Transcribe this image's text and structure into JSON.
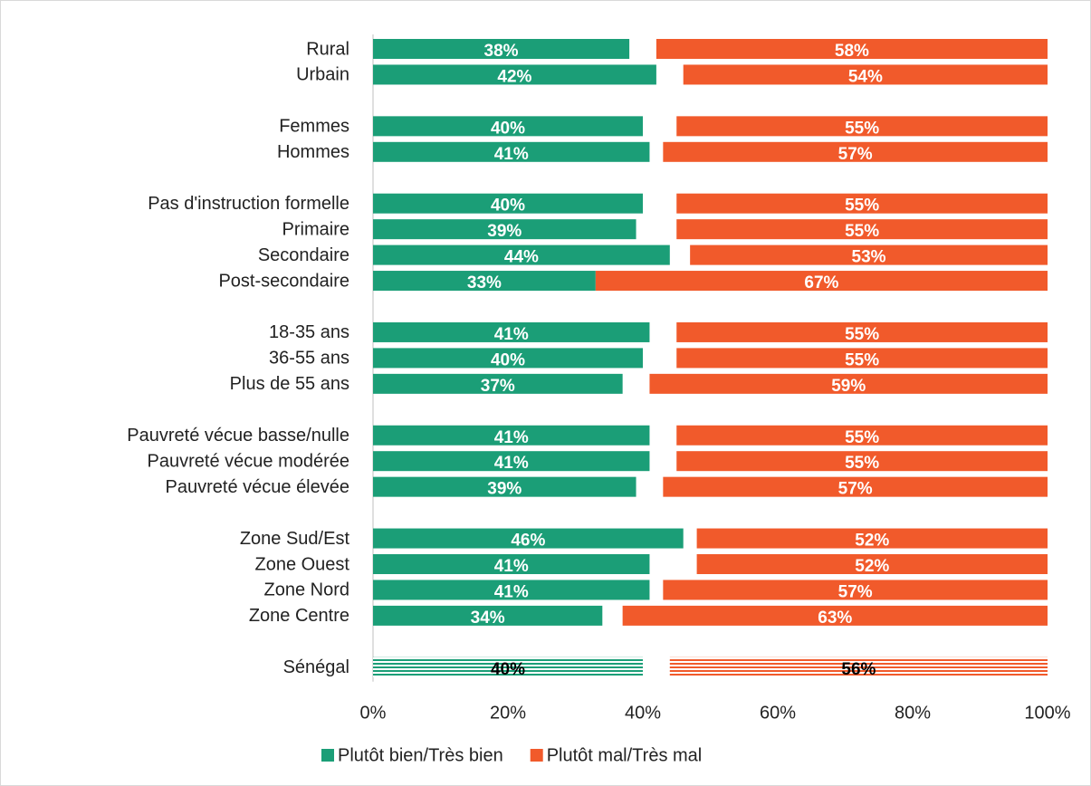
{
  "chart_data": {
    "type": "bar",
    "categories": [
      "Rural",
      "Urbain",
      null,
      "Femmes",
      "Hommes",
      null,
      "Pas d'instruction formelle",
      "Primaire",
      "Secondaire",
      "Post-secondaire",
      null,
      "18-35 ans",
      "36-55 ans",
      "Plus de 55 ans",
      null,
      "Pauvreté vécue basse/nulle",
      "Pauvreté vécue modérée",
      "Pauvreté vécue élevée",
      null,
      "Zone Sud/Est",
      "Zone Ouest",
      "Zone Nord",
      "Zone Centre",
      null,
      "Sénégal"
    ],
    "series": [
      {
        "name": "Plutôt bien/Très bien",
        "color": "#1b9e77",
        "values": [
          38,
          42,
          null,
          40,
          41,
          null,
          40,
          39,
          44,
          33,
          null,
          41,
          40,
          37,
          null,
          41,
          41,
          39,
          null,
          46,
          41,
          41,
          34,
          null,
          40
        ],
        "value_labels": [
          "38%",
          "42%",
          null,
          "40%",
          "41%",
          null,
          "40%",
          "39%",
          "44%",
          "33%",
          null,
          "41%",
          "40%",
          "37%",
          null,
          "41%",
          "41%",
          "39%",
          null,
          "46%",
          "41%",
          "41%",
          "34%",
          null,
          "40%"
        ]
      },
      {
        "name": "Plutôt mal/Très mal",
        "color": "#f15a2b",
        "values": [
          58,
          54,
          null,
          55,
          57,
          null,
          55,
          55,
          53,
          67,
          null,
          55,
          55,
          59,
          null,
          55,
          55,
          57,
          null,
          52,
          52,
          57,
          63,
          null,
          56
        ],
        "value_labels": [
          "58%",
          "54%",
          null,
          "55%",
          "57%",
          null,
          "55%",
          "55%",
          "53%",
          "67%",
          null,
          "55%",
          "55%",
          "59%",
          null,
          "55%",
          "55%",
          "57%",
          null,
          "52%",
          "52%",
          "57%",
          "63%",
          null,
          "56%"
        ]
      }
    ],
    "xlim": [
      0,
      100
    ],
    "xticks": [
      {
        "value": 0,
        "label": "0%"
      },
      {
        "value": 20,
        "label": "20%"
      },
      {
        "value": 40,
        "label": "40%"
      },
      {
        "value": 60,
        "label": "60%"
      },
      {
        "value": 80,
        "label": "80%"
      },
      {
        "value": 100,
        "label": "100%"
      }
    ],
    "hatch_last": true,
    "legend": "bottom"
  }
}
